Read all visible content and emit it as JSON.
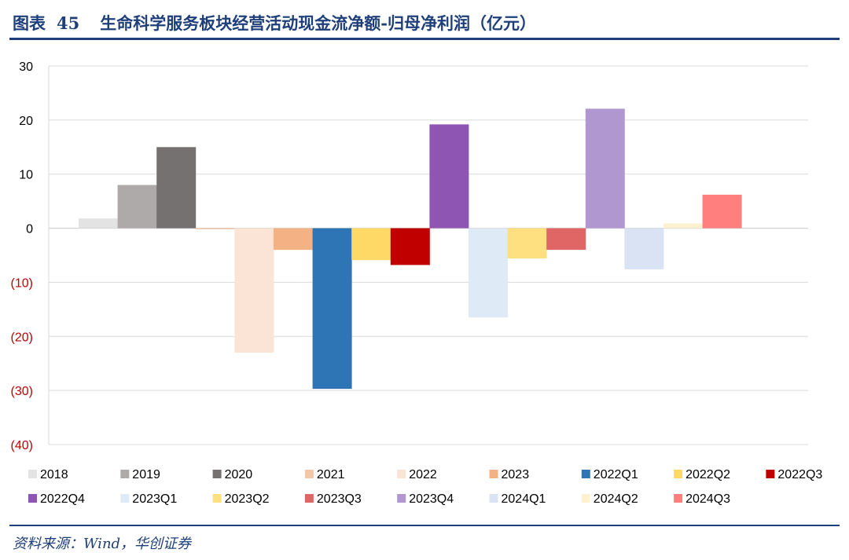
{
  "header": {
    "figure_label": "图表",
    "figure_number": "45",
    "title": "生命科学服务板块经营活动现金流净额-归母净利润（亿元）"
  },
  "footer": {
    "source": "资料来源：Wind，华创证券"
  },
  "chart_data": {
    "type": "bar",
    "title": "生命科学服务板块经营活动现金流净额-归母净利润（亿元）",
    "xlabel": "",
    "ylabel": "",
    "ylim": [
      -40,
      30
    ],
    "yticks": [
      30,
      20,
      10,
      0,
      -10,
      -20,
      -30,
      -40
    ],
    "ytick_labels": [
      "30",
      "20",
      "10",
      "0",
      "(10)",
      "(20)",
      "(30)",
      "(40)"
    ],
    "negative_tick_color": "#c00000",
    "grid": true,
    "legend": "bottom",
    "series": [
      {
        "name": "2018",
        "value": 1.8,
        "color": "#e3e3e3"
      },
      {
        "name": "2019",
        "value": 8.0,
        "color": "#aeaaaa"
      },
      {
        "name": "2020",
        "value": 15.0,
        "color": "#767171"
      },
      {
        "name": "2021",
        "value": -0.2,
        "color": "#f4c6a8"
      },
      {
        "name": "2022",
        "value": -23.0,
        "color": "#fbe3d6"
      },
      {
        "name": "2023",
        "value": -4.0,
        "color": "#f4b183"
      },
      {
        "name": "2022Q1",
        "value": -29.7,
        "color": "#2e75b6"
      },
      {
        "name": "2022Q2",
        "value": -5.9,
        "color": "#ffd966"
      },
      {
        "name": "2022Q3",
        "value": -6.8,
        "color": "#c00000"
      },
      {
        "name": "2022Q4",
        "value": 19.2,
        "color": "#8e56b2"
      },
      {
        "name": "2023Q1",
        "value": -16.5,
        "color": "#deebf7"
      },
      {
        "name": "2023Q2",
        "value": -5.6,
        "color": "#ffe081"
      },
      {
        "name": "2023Q3",
        "value": -4.0,
        "color": "#e06666"
      },
      {
        "name": "2023Q4",
        "value": 22.1,
        "color": "#b197d0"
      },
      {
        "name": "2024Q1",
        "value": -7.6,
        "color": "#d9e3f4"
      },
      {
        "name": "2024Q2",
        "value": 0.9,
        "color": "#fdf1cf"
      },
      {
        "name": "2024Q3",
        "value": 6.2,
        "color": "#ff7f7f"
      }
    ]
  }
}
